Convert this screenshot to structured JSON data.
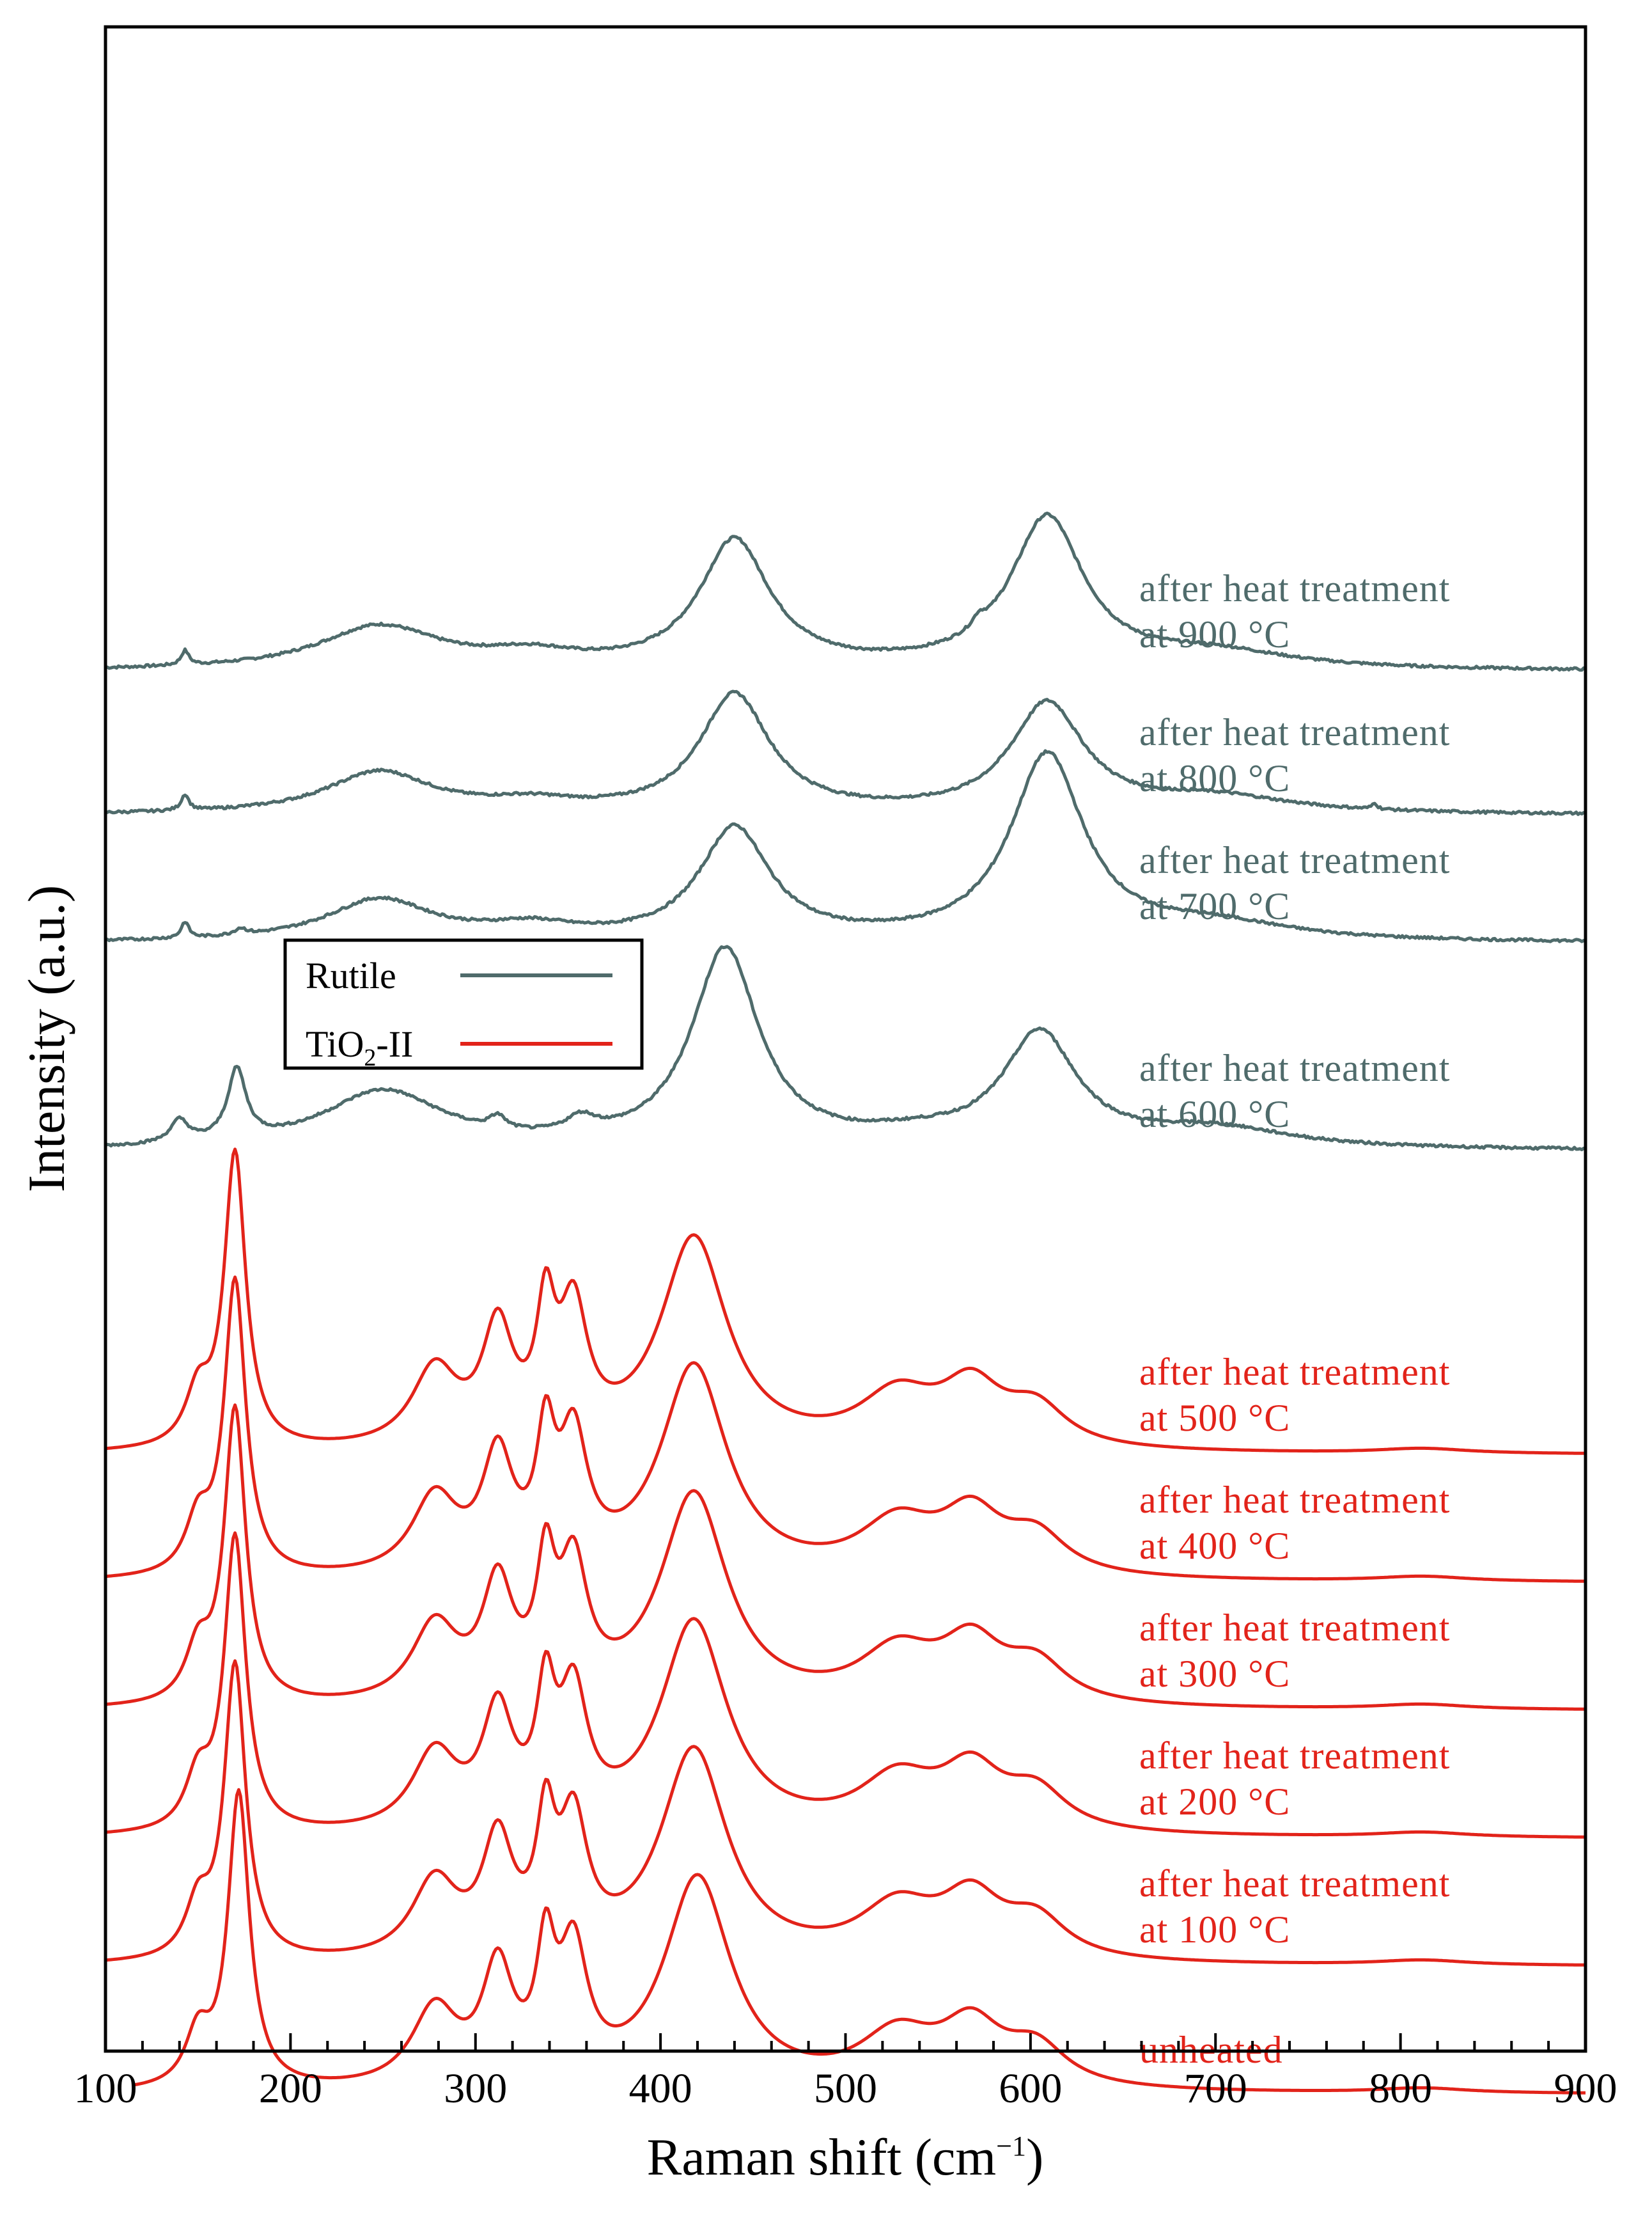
{
  "chart_data": {
    "type": "line",
    "title": "",
    "xlabel": "Raman shift (cm−1)",
    "xlabel_parts": {
      "main": "Raman shift (cm",
      "superscript": "−1",
      "close": ")"
    },
    "ylabel": "Intensity (a.u.)",
    "xlim": [
      100,
      900
    ],
    "x_ticks": [
      100,
      200,
      300,
      400,
      500,
      600,
      700,
      800,
      900
    ],
    "x_tick_labels": [
      "100",
      "200",
      "300",
      "400",
      "500",
      "600",
      "700",
      "800",
      "900"
    ],
    "y_ticks_shown": false,
    "offset_stacked": true,
    "legend": {
      "position": "center-left",
      "entries": [
        {
          "label": "Rutile",
          "color": "#4f6b6b"
        },
        {
          "label_main": "TiO",
          "label_sub": "2",
          "label_rest": "-II",
          "label": "TiO2-II",
          "color": "#e2231a"
        }
      ]
    },
    "colors": {
      "rutile": "#4f6b6b",
      "tio2_ii": "#e2231a"
    },
    "series": [
      {
        "name": "after heat treatment at 900 °C",
        "label_lines": [
          "after heat treatment",
          "at 900 °C"
        ],
        "group": "rutile",
        "color": "#4f6b6b",
        "start_x": 100,
        "baseline": 0.0,
        "peaks": [
          [
            143,
            0.045,
            2.5
          ],
          [
            248,
            0.135,
            40
          ],
          [
            330,
            0.04,
            30
          ],
          [
            440,
            0.4,
            23
          ],
          [
            572,
            0.03,
            4
          ],
          [
            609,
            0.47,
            24
          ],
          [
            700,
            0.05,
            50
          ]
        ],
        "offset": 6.0
      },
      {
        "name": "after heat treatment at 800 °C",
        "label_lines": [
          "after heat treatment",
          "at 800 °C"
        ],
        "group": "rutile",
        "color": "#4f6b6b",
        "start_x": 100,
        "baseline": 0.0,
        "peaks": [
          [
            143,
            0.05,
            2.5
          ],
          [
            248,
            0.13,
            35
          ],
          [
            330,
            0.03,
            30
          ],
          [
            440,
            0.37,
            23
          ],
          [
            609,
            0.34,
            24
          ],
          [
            700,
            0.05,
            50
          ],
          [
            786,
            0.02,
            1.5
          ]
        ],
        "offset": 5.55
      },
      {
        "name": "after heat treatment at 700 °C",
        "label_lines": [
          "after heat treatment",
          "at 700 °C"
        ],
        "group": "rutile",
        "color": "#4f6b6b",
        "start_x": 100,
        "baseline": 0.0,
        "peaks": [
          [
            143,
            0.05,
            2.5
          ],
          [
            173,
            0.02,
            4
          ],
          [
            248,
            0.13,
            35
          ],
          [
            330,
            0.04,
            30
          ],
          [
            440,
            0.35,
            23
          ],
          [
            609,
            0.58,
            24
          ],
          [
            700,
            0.05,
            50
          ]
        ],
        "offset": 5.15
      },
      {
        "name": "after heat treatment at 600 °C",
        "label_lines": [
          "after heat treatment",
          "at 600 °C"
        ],
        "group": "rutile",
        "color": "#4f6b6b",
        "start_x": 100,
        "baseline": 0.0,
        "peaks": [
          [
            140,
            0.07,
            6
          ],
          [
            171,
            0.22,
            6
          ],
          [
            250,
            0.18,
            40
          ],
          [
            312,
            0.04,
            5
          ],
          [
            357,
            0.05,
            10
          ],
          [
            435,
            0.62,
            22
          ],
          [
            540,
            0.03,
            40
          ],
          [
            605,
            0.35,
            24
          ],
          [
            700,
            0.06,
            50
          ]
        ],
        "offset": 4.5
      },
      {
        "name": "after heat treatment at 500 °C",
        "label_lines": [
          "after heat treatment",
          "at 500 °C"
        ],
        "group": "tio2_ii",
        "color": "#e2231a",
        "start_x": 100,
        "baseline": 0.0,
        "peaks": [
          [
            150,
            0.16,
            8
          ],
          [
            170,
            0.92,
            7
          ],
          [
            278,
            0.24,
            15
          ],
          [
            312,
            0.35,
            10
          ],
          [
            338,
            0.37,
            6
          ],
          [
            353,
            0.39,
            9
          ],
          [
            418,
            0.66,
            22
          ],
          [
            528,
            0.16,
            25
          ],
          [
            568,
            0.18,
            20
          ],
          [
            603,
            0.12,
            20
          ],
          [
            812,
            0.015,
            30
          ]
        ],
        "offset": 3.55
      },
      {
        "name": "after heat treatment at 400 °C",
        "label_lines": [
          "after heat treatment",
          "at 400 °C"
        ],
        "group": "tio2_ii",
        "color": "#e2231a",
        "start_x": 100,
        "baseline": 0.0,
        "peaks": [
          [
            150,
            0.16,
            8
          ],
          [
            170,
            0.92,
            7
          ],
          [
            278,
            0.24,
            15
          ],
          [
            312,
            0.35,
            10
          ],
          [
            338,
            0.37,
            6
          ],
          [
            353,
            0.39,
            9
          ],
          [
            418,
            0.66,
            22
          ],
          [
            528,
            0.16,
            25
          ],
          [
            568,
            0.18,
            20
          ],
          [
            603,
            0.12,
            20
          ],
          [
            812,
            0.015,
            30
          ]
        ],
        "offset": 3.15
      },
      {
        "name": "after heat treatment at 300 °C",
        "label_lines": [
          "after heat treatment",
          "at 300 °C"
        ],
        "group": "tio2_ii",
        "color": "#e2231a",
        "start_x": 100,
        "baseline": 0.0,
        "peaks": [
          [
            150,
            0.16,
            8
          ],
          [
            170,
            0.92,
            7
          ],
          [
            278,
            0.24,
            15
          ],
          [
            312,
            0.35,
            10
          ],
          [
            338,
            0.37,
            6
          ],
          [
            353,
            0.39,
            9
          ],
          [
            418,
            0.66,
            22
          ],
          [
            528,
            0.16,
            25
          ],
          [
            568,
            0.18,
            20
          ],
          [
            603,
            0.12,
            20
          ],
          [
            812,
            0.015,
            30
          ]
        ],
        "offset": 2.75
      },
      {
        "name": "after heat treatment at 200 °C",
        "label_lines": [
          "after heat treatment",
          "at 200 °C"
        ],
        "group": "tio2_ii",
        "color": "#e2231a",
        "start_x": 100,
        "baseline": 0.0,
        "peaks": [
          [
            150,
            0.16,
            8
          ],
          [
            170,
            0.92,
            7
          ],
          [
            278,
            0.24,
            15
          ],
          [
            312,
            0.35,
            10
          ],
          [
            338,
            0.37,
            6
          ],
          [
            353,
            0.39,
            9
          ],
          [
            418,
            0.66,
            22
          ],
          [
            528,
            0.16,
            25
          ],
          [
            568,
            0.18,
            20
          ],
          [
            603,
            0.12,
            20
          ],
          [
            812,
            0.015,
            30
          ]
        ],
        "offset": 2.35
      },
      {
        "name": "after heat treatment at 100 °C",
        "label_lines": [
          "after heat treatment",
          "at 100 °C"
        ],
        "group": "tio2_ii",
        "color": "#e2231a",
        "start_x": 100,
        "baseline": 0.0,
        "peaks": [
          [
            150,
            0.16,
            8
          ],
          [
            170,
            0.92,
            7
          ],
          [
            278,
            0.24,
            15
          ],
          [
            312,
            0.35,
            10
          ],
          [
            338,
            0.37,
            6
          ],
          [
            353,
            0.39,
            9
          ],
          [
            418,
            0.66,
            22
          ],
          [
            528,
            0.16,
            25
          ],
          [
            568,
            0.18,
            20
          ],
          [
            603,
            0.12,
            20
          ],
          [
            812,
            0.015,
            30
          ]
        ],
        "offset": 1.95
      },
      {
        "name": "unheated",
        "label_lines": [
          "unheated"
        ],
        "group": "tio2_ii",
        "color": "#e2231a",
        "start_x": 115,
        "baseline": 0.0,
        "peaks": [
          [
            150,
            0.16,
            8
          ],
          [
            172,
            0.92,
            7
          ],
          [
            278,
            0.24,
            15
          ],
          [
            312,
            0.35,
            10
          ],
          [
            338,
            0.37,
            6
          ],
          [
            353,
            0.39,
            9
          ],
          [
            420,
            0.66,
            22
          ],
          [
            528,
            0.16,
            25
          ],
          [
            568,
            0.18,
            20
          ],
          [
            603,
            0.12,
            20
          ],
          [
            812,
            0.015,
            30
          ]
        ],
        "offset": 1.55
      }
    ]
  }
}
